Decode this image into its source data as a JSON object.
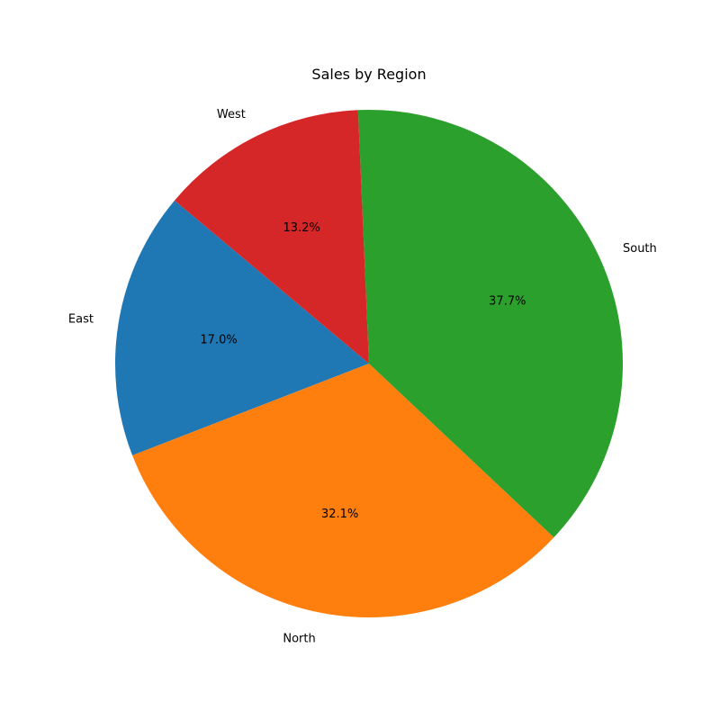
{
  "chart_data": {
    "type": "pie",
    "title": "Sales by Region",
    "categories": [
      "East",
      "North",
      "South",
      "West"
    ],
    "values": [
      17.0,
      32.1,
      37.7,
      13.2
    ],
    "value_labels": [
      "17.0%",
      "32.1%",
      "37.7%",
      "13.2%"
    ],
    "colors": [
      "#1f77b4",
      "#ff7f0e",
      "#2ca02c",
      "#d62728"
    ],
    "start_angle_deg": 140,
    "direction": "counterclockwise",
    "legend": "none"
  }
}
